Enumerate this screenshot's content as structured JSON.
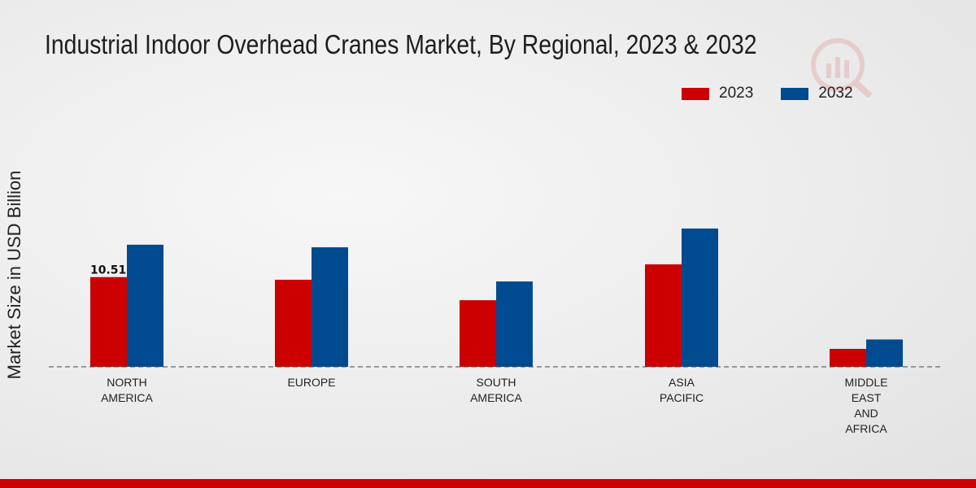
{
  "chart_data": {
    "type": "bar",
    "title": "Industrial Indoor Overhead Cranes Market, By Regional, 2023 & 2032",
    "xlabel": "",
    "ylabel": "Market Size in USD Billion",
    "categories": [
      [
        "NORTH",
        "AMERICA"
      ],
      [
        "EUROPE"
      ],
      [
        "SOUTH",
        "AMERICA"
      ],
      [
        "ASIA",
        "PACIFIC"
      ],
      [
        "MIDDLE",
        "EAST",
        "AND",
        "AFRICA"
      ]
    ],
    "series": [
      {
        "name": "2023",
        "color": "#cc0000",
        "values": [
          10.51,
          10.2,
          7.8,
          12.0,
          2.1
        ]
      },
      {
        "name": "2032",
        "color": "#004a8f",
        "values": [
          14.3,
          14.0,
          10.0,
          16.2,
          3.2
        ]
      }
    ],
    "ylim": [
      0,
      30
    ],
    "data_labels": [
      {
        "series": 0,
        "index": 0,
        "text": "10.51"
      }
    ],
    "legend_position": "top-right",
    "grid": false,
    "baseline_style": "dashed"
  },
  "legend": {
    "items": [
      {
        "label": "2023",
        "color": "#cc0000"
      },
      {
        "label": "2032",
        "color": "#004a8f"
      }
    ]
  },
  "footer": {
    "bar_color": "#cc0000"
  }
}
